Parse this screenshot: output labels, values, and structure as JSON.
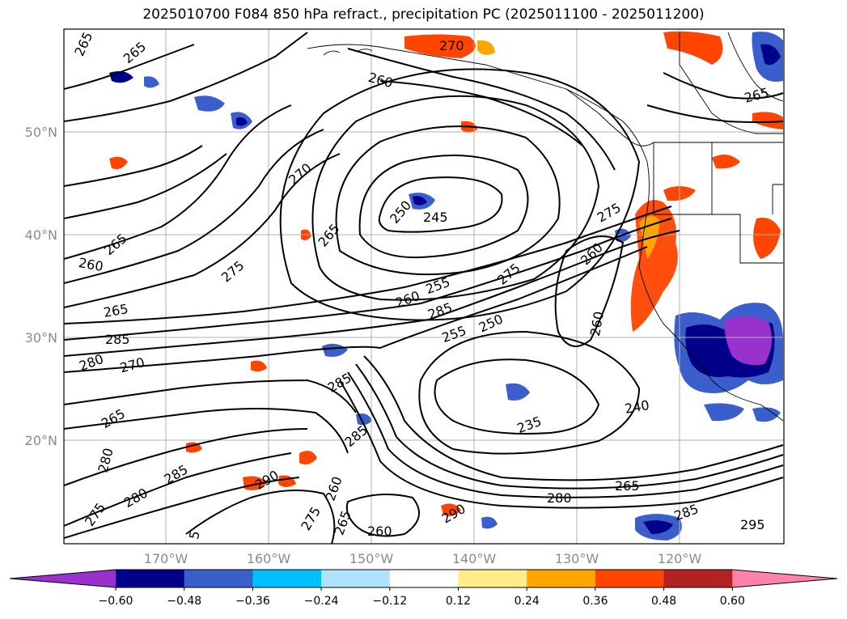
{
  "title": "2025010700 F084 850 hPa refract., precipitation PC (2025011100 - 2025011200)",
  "map": {
    "lat_labels": [
      "50°N",
      "40°N",
      "30°N",
      "20°N"
    ],
    "lon_labels": [
      "170°W",
      "160°W",
      "150°W",
      "140°W",
      "130°W",
      "120°W"
    ]
  },
  "contour_labels": [
    "265",
    "265",
    "260",
    "270",
    "270",
    "250",
    "245",
    "265",
    "265",
    "275",
    "260",
    "275",
    "260",
    "255",
    "275",
    "260",
    "265",
    "285",
    "250",
    "255",
    "285",
    "260",
    "280",
    "270",
    "285",
    "265",
    "240",
    "235",
    "280",
    "285",
    "290",
    "265",
    "280",
    "280",
    "285",
    "285",
    "265",
    "260",
    "275",
    "290",
    "295",
    "275",
    "260",
    "265",
    "5"
  ],
  "colorbar": {
    "ticks": [
      "−0.60",
      "−0.48",
      "−0.36",
      "−0.24",
      "−0.12",
      "0.12",
      "0.24",
      "0.36",
      "0.48",
      "0.60"
    ],
    "colors": [
      "#9932CC",
      "#00008B",
      "#3A5FCD",
      "#00BFFF",
      "#B0E2FF",
      "#FFFFFF",
      "#FFEC8B",
      "#FFA500",
      "#FF4500",
      "#B22222",
      "#FF82AB"
    ]
  }
}
